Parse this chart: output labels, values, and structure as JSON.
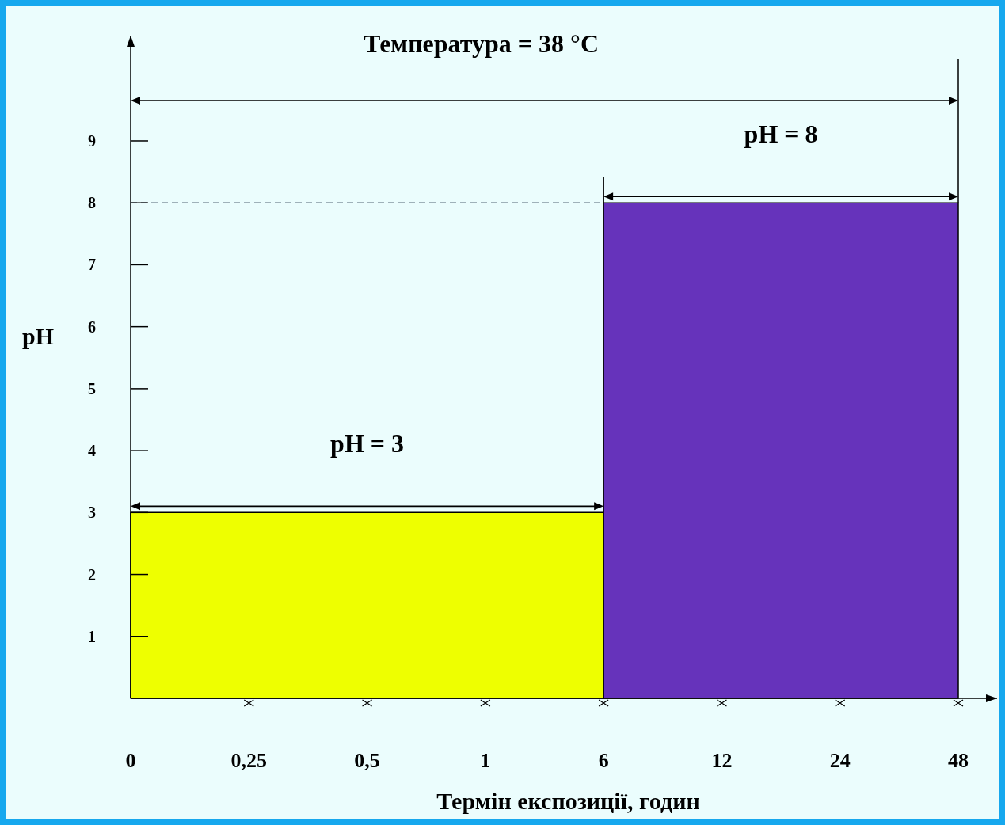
{
  "chart_data": {
    "type": "area",
    "xlabel": "Термін експозиції, годин",
    "ylabel": "pH",
    "categories": [
      "0",
      "0,25",
      "0,5",
      "1",
      "6",
      "12",
      "24",
      "48"
    ],
    "series": [
      {
        "color": "#eeff00",
        "values": [
          3,
          3,
          3,
          3,
          3,
          null,
          null,
          null
        ]
      },
      {
        "color": "#6633bb",
        "values": [
          null,
          null,
          null,
          null,
          8,
          8,
          8,
          8
        ]
      }
    ],
    "ylim": [
      0,
      10.7
    ],
    "yticks": [
      1,
      2,
      3,
      4,
      5,
      6,
      7,
      8,
      9
    ],
    "ref_lines": [
      {
        "axis": "y",
        "value": 8,
        "color": "#556677",
        "line_style": "dashed"
      }
    ],
    "annotations": [
      "Температура = 38 °C",
      "pH = 3",
      "pH = 8"
    ]
  }
}
